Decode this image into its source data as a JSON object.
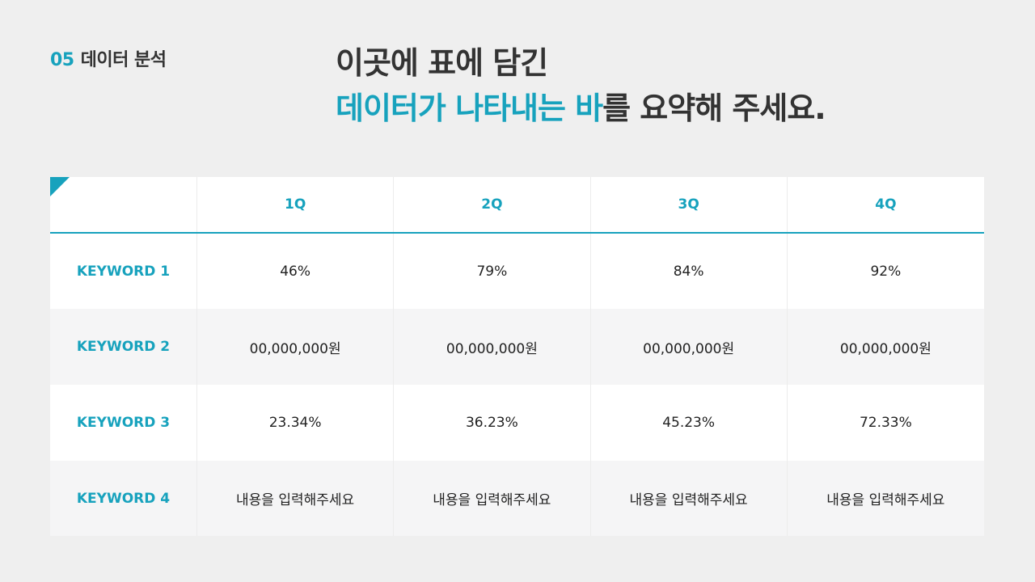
{
  "section": {
    "number": "05",
    "label": "데이터 분석"
  },
  "title": {
    "line1": "이곳에 표에 담긴",
    "line2_highlight": "데이터가 나타내는 바",
    "line2_rest": "를 요약해 주세요."
  },
  "colors": {
    "accent": "#17a2bd",
    "background": "#efefef",
    "row_alt": "#f5f5f6"
  },
  "table": {
    "columns": [
      "",
      "1Q",
      "2Q",
      "3Q",
      "4Q"
    ],
    "rows": [
      {
        "label": "KEYWORD 1",
        "values": [
          "46%",
          "79%",
          "84%",
          "92%"
        ]
      },
      {
        "label": "KEYWORD 2",
        "values": [
          "00,000,000원",
          "00,000,000원",
          "00,000,000원",
          "00,000,000원"
        ]
      },
      {
        "label": "KEYWORD 3",
        "values": [
          "23.34%",
          "36.23%",
          "45.23%",
          "72.33%"
        ]
      },
      {
        "label": "KEYWORD 4",
        "values": [
          "내용을 입력해주세요",
          "내용을 입력해주세요",
          "내용을 입력해주세요",
          "내용을 입력해주세요"
        ]
      }
    ]
  }
}
